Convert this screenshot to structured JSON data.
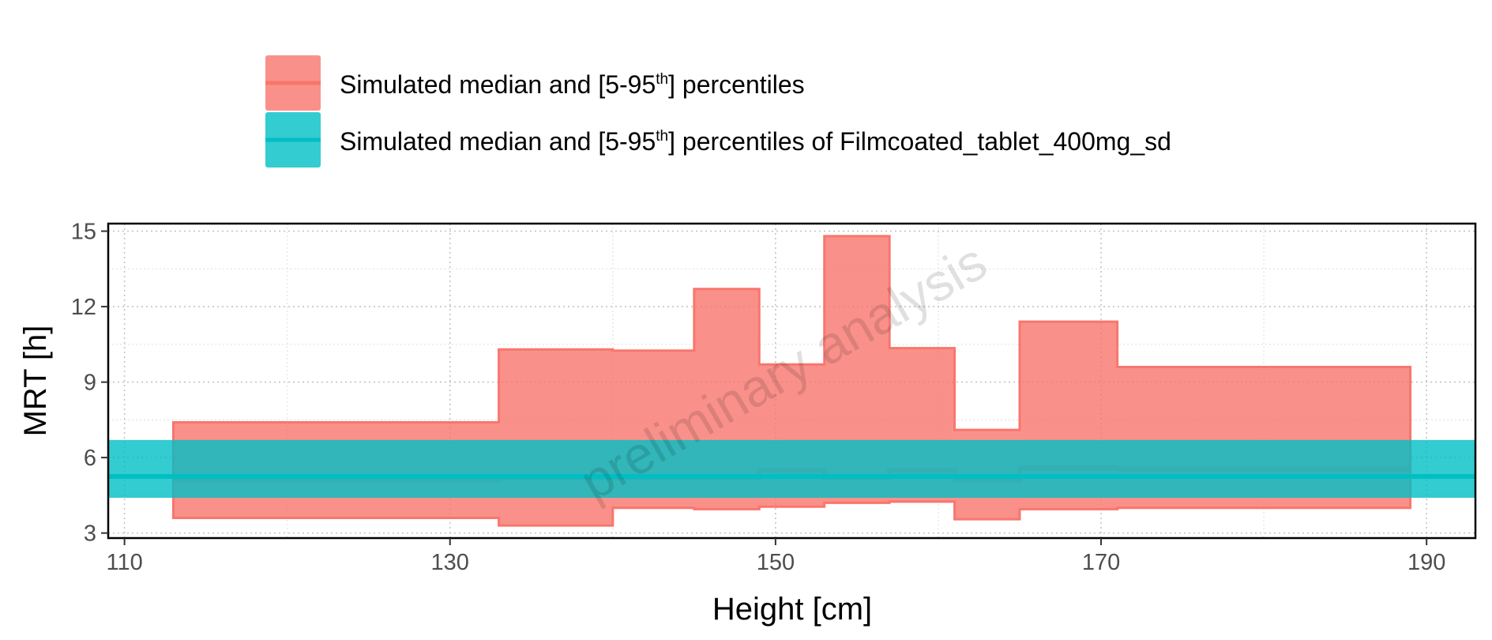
{
  "chart_data": {
    "type": "area",
    "xlabel": "Height [cm]",
    "ylabel": "MRT [h]",
    "xlim": [
      109,
      193
    ],
    "ylim": [
      2.8,
      15.3
    ],
    "x_ticks": [
      110,
      130,
      150,
      170,
      190
    ],
    "y_ticks": [
      3,
      6,
      9,
      12,
      15
    ],
    "grid": true,
    "legend_position": "top",
    "watermark": "preliminary analysis",
    "series": [
      {
        "name_parts": [
          "Simulated median and [5-95",
          "th",
          "] percentiles"
        ],
        "color": "#F8766D",
        "fill_opacity": 0.8,
        "bins": [
          {
            "x": [
              113,
              133
            ],
            "low": 3.6,
            "median": 5.1,
            "high": 7.4
          },
          {
            "x": [
              133,
              140
            ],
            "low": 3.3,
            "median": 5.2,
            "high": 10.3
          },
          {
            "x": [
              140,
              145
            ],
            "low": 4.0,
            "median": 5.2,
            "high": 10.25
          },
          {
            "x": [
              145,
              149
            ],
            "low": 3.95,
            "median": 5.2,
            "high": 12.7
          },
          {
            "x": [
              149,
              153
            ],
            "low": 4.05,
            "median": 5.5,
            "high": 9.7
          },
          {
            "x": [
              153,
              157
            ],
            "low": 4.2,
            "median": 5.2,
            "high": 14.8
          },
          {
            "x": [
              157,
              161
            ],
            "low": 4.25,
            "median": 5.5,
            "high": 10.35
          },
          {
            "x": [
              161,
              165
            ],
            "low": 3.55,
            "median": 5.1,
            "high": 7.1
          },
          {
            "x": [
              165,
              171
            ],
            "low": 3.95,
            "median": 5.6,
            "high": 11.4
          },
          {
            "x": [
              171,
              189
            ],
            "low": 4.0,
            "median": 5.55,
            "high": 9.6
          }
        ]
      },
      {
        "name_parts": [
          "Simulated median and [5-95",
          "th",
          "] percentiles of Filmcoated_tablet_400mg_sd"
        ],
        "color": "#00BFC4",
        "fill_opacity": 0.8,
        "x_range": [
          109,
          193
        ],
        "low": 4.4,
        "median": 5.25,
        "high": 6.7
      }
    ]
  }
}
